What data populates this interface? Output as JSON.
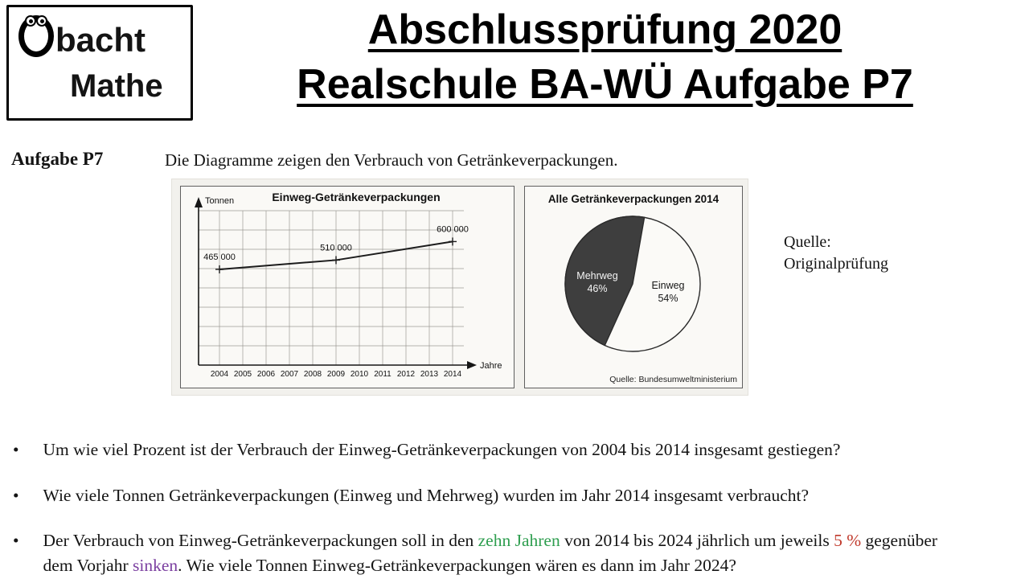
{
  "logo": {
    "line1": "Obacht",
    "line1_rest": "bacht",
    "line2": "Mathe"
  },
  "title": {
    "line1": "Abschlussprüfung 2020",
    "line2": "Realschule BA-WÜ Aufgabe P7"
  },
  "task": {
    "label": "Aufgabe P7",
    "description": "Die Diagramme zeigen den Verbrauch von Getränkeverpackungen."
  },
  "source_note": {
    "line1": "Quelle:",
    "line2": "Originalprüfung"
  },
  "chart_data": [
    {
      "type": "line",
      "title": "Einweg-Getränkeverpackungen",
      "ylabel": "Tonnen",
      "xlabel": "Jahre",
      "x": [
        2004,
        2005,
        2006,
        2007,
        2008,
        2009,
        2010,
        2011,
        2012,
        2013,
        2014
      ],
      "points": [
        {
          "year": 2004,
          "value": 465000,
          "label": "465 000"
        },
        {
          "year": 2009,
          "value": 510000,
          "label": "510 000"
        },
        {
          "year": 2014,
          "value": 600000,
          "label": "600 000"
        }
      ],
      "ylim": [
        0,
        750000
      ],
      "grid": true,
      "legend": "none"
    },
    {
      "type": "pie",
      "title": "Alle Getränkeverpackungen 2014",
      "slices": [
        {
          "label": "Mehrweg",
          "pct": 46,
          "pct_label": "46%",
          "color": "#3e3e3e",
          "text_color": "#f5f5f5"
        },
        {
          "label": "Einweg",
          "pct": 54,
          "pct_label": "54%",
          "color": "#fbfaf7",
          "text_color": "#161616"
        }
      ],
      "source": "Quelle: Bundesumweltministerium"
    }
  ],
  "bullets": [
    {
      "segments": [
        {
          "text": "Um wie viel Prozent ist der Verbrauch der Einweg-Getränkeverpackungen von 2004 bis 2014 insgesamt gestiegen?"
        }
      ]
    },
    {
      "segments": [
        {
          "text": "Wie viele Tonnen Getränkeverpackungen (Einweg und Mehrweg) wurden im Jahr 2014 insgesamt verbraucht?"
        }
      ]
    },
    {
      "segments": [
        {
          "text": "Der Verbrauch von Einweg-Getränkeverpackungen soll in den "
        },
        {
          "text": "zehn Jahren",
          "color": "#2e9e4f"
        },
        {
          "text": " von 2014 bis 2024 jährlich um jeweils "
        },
        {
          "text": "5 %",
          "color": "#c0392b"
        },
        {
          "text": " gegenüber dem Vorjahr "
        },
        {
          "text": "sinken",
          "color": "#7b3fa0"
        },
        {
          "text": ". Wie viele Tonnen Einweg-Getränkeverpackungen wären es dann im Jahr 2024?"
        }
      ]
    }
  ]
}
